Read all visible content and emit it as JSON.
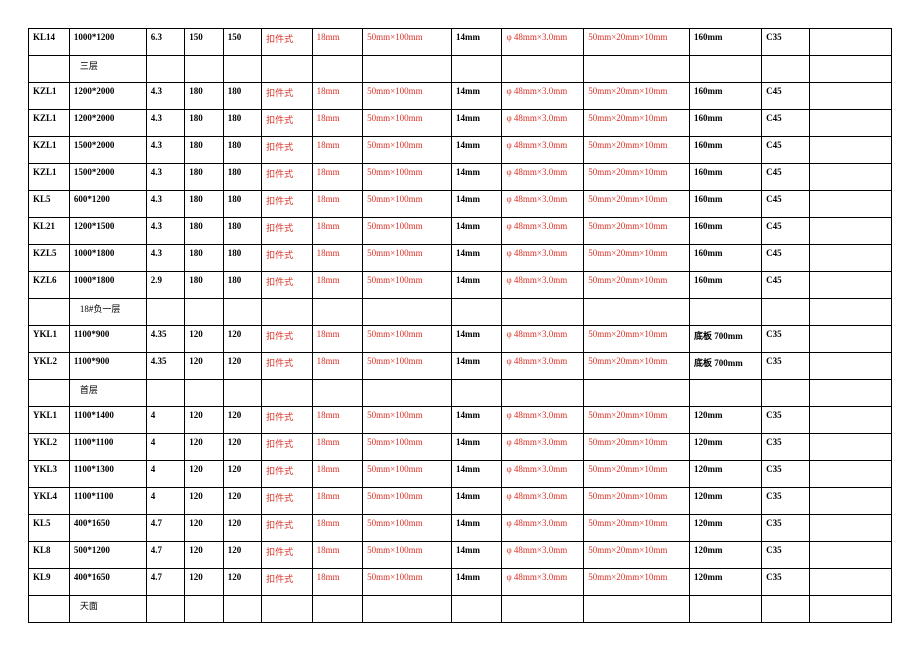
{
  "columns": 14,
  "colors": {
    "text_black": "#000000",
    "text_red": "#d93025",
    "border": "#000000",
    "background": "#ffffff"
  },
  "common": {
    "c5": "扣件式",
    "c6": "18mm",
    "c7": "50mm×100mm",
    "c8": "14mm",
    "c9": "φ 48mm×3.0mm",
    "c10": "50mm×20mm×10mm"
  },
  "rows": [
    {
      "type": "data",
      "c0": "KL14",
      "c1": "1000*1200",
      "c2": "6.3",
      "c3": "150",
      "c4": "150",
      "c11": "160mm",
      "c12": "C35"
    },
    {
      "type": "section",
      "label": "三层"
    },
    {
      "type": "data",
      "c0": "KZL1",
      "c1": "1200*2000",
      "c2": "4.3",
      "c3": "180",
      "c4": "180",
      "c11": "160mm",
      "c12": "C45"
    },
    {
      "type": "data",
      "c0": "KZL1",
      "c1": "1200*2000",
      "c2": "4.3",
      "c3": "180",
      "c4": "180",
      "c11": "160mm",
      "c12": "C45"
    },
    {
      "type": "data",
      "c0": "KZL1",
      "c1": "1500*2000",
      "c2": "4.3",
      "c3": "180",
      "c4": "180",
      "c11": "160mm",
      "c12": "C45"
    },
    {
      "type": "data",
      "c0": "KZL1",
      "c1": "1500*2000",
      "c2": "4.3",
      "c3": "180",
      "c4": "180",
      "c11": "160mm",
      "c12": "C45"
    },
    {
      "type": "data",
      "c0": "KL5",
      "c1": "600*1200",
      "c2": "4.3",
      "c3": "180",
      "c4": "180",
      "c11": "160mm",
      "c12": "C45"
    },
    {
      "type": "data",
      "c0": "KL21",
      "c1": "1200*1500",
      "c2": "4.3",
      "c3": "180",
      "c4": "180",
      "c11": "160mm",
      "c12": "C45"
    },
    {
      "type": "data",
      "c0": "KZL5",
      "c1": "1000*1800",
      "c2": "4.3",
      "c3": "180",
      "c4": "180",
      "c11": "160mm",
      "c12": "C45"
    },
    {
      "type": "data",
      "c0": "KZL6",
      "c1": "1000*1800",
      "c2": "2.9",
      "c3": "180",
      "c4": "180",
      "c11": "160mm",
      "c12": "C45"
    },
    {
      "type": "section",
      "label": "18#负一层"
    },
    {
      "type": "data",
      "c0": "YKL1",
      "c1": "1100*900",
      "c2": "4.35",
      "c3": "120",
      "c4": "120",
      "c11": "底板 700mm",
      "c12": "C35"
    },
    {
      "type": "data",
      "c0": "YKL2",
      "c1": "1100*900",
      "c2": "4.35",
      "c3": "120",
      "c4": "120",
      "c11": "底板 700mm",
      "c12": "C35"
    },
    {
      "type": "section",
      "label": "首层"
    },
    {
      "type": "data",
      "c0": "YKL1",
      "c1": "1100*1400",
      "c2": "4",
      "c3": "120",
      "c4": "120",
      "c11": "120mm",
      "c12": "C35"
    },
    {
      "type": "data",
      "c0": "YKL2",
      "c1": "1100*1100",
      "c2": "4",
      "c3": "120",
      "c4": "120",
      "c11": "120mm",
      "c12": "C35"
    },
    {
      "type": "data",
      "c0": "YKL3",
      "c1": "1100*1300",
      "c2": "4",
      "c3": "120",
      "c4": "120",
      "c11": "120mm",
      "c12": "C35"
    },
    {
      "type": "data",
      "c0": "YKL4",
      "c1": "1100*1100",
      "c2": "4",
      "c3": "120",
      "c4": "120",
      "c11": "120mm",
      "c12": "C35"
    },
    {
      "type": "data",
      "c0": "KL5",
      "c1": "400*1650",
      "c2": "4.7",
      "c3": "120",
      "c4": "120",
      "c11": "120mm",
      "c12": "C35"
    },
    {
      "type": "data",
      "c0": "KL8",
      "c1": "500*1200",
      "c2": "4.7",
      "c3": "120",
      "c4": "120",
      "c11": "120mm",
      "c12": "C35"
    },
    {
      "type": "data",
      "c0": "KL9",
      "c1": "400*1650",
      "c2": "4.7",
      "c3": "120",
      "c4": "120",
      "c11": "120mm",
      "c12": "C35"
    },
    {
      "type": "section",
      "label": "天面"
    }
  ]
}
